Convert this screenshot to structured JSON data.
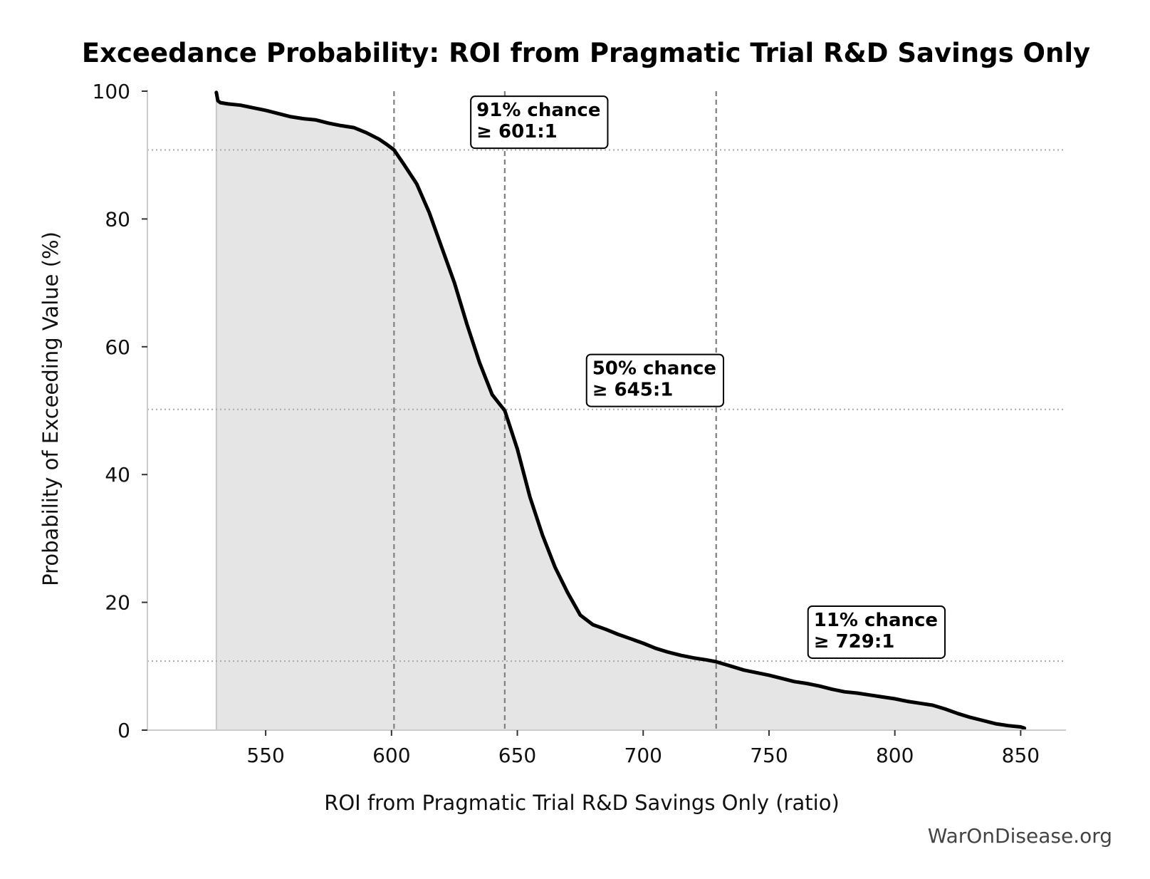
{
  "chart_data": {
    "type": "area",
    "title": "Exceedance Probability: ROI from Pragmatic Trial R&D Savings Only",
    "xlabel": "ROI from Pragmatic Trial R&D Savings Only (ratio)",
    "ylabel": "Probability of Exceeding Value (%)",
    "xlim": [
      503,
      868
    ],
    "ylim": [
      0,
      100
    ],
    "xticks": [
      550,
      600,
      650,
      700,
      750,
      800,
      850
    ],
    "yticks": [
      0,
      20,
      40,
      60,
      80,
      100
    ],
    "grid": false,
    "series": [
      {
        "x": [
          530.4,
          531,
          532,
          535,
          540,
          545,
          550,
          555,
          560,
          565,
          570,
          575,
          580,
          585,
          590,
          595,
          598,
          601,
          605,
          610,
          615,
          620,
          625,
          630,
          635,
          640,
          643,
          645,
          650,
          655,
          660,
          665,
          670,
          675,
          680,
          685,
          690,
          695,
          700,
          705,
          710,
          715,
          720,
          725,
          729,
          735,
          740,
          745,
          750,
          755,
          760,
          765,
          770,
          775,
          780,
          785,
          790,
          795,
          800,
          805,
          810,
          815,
          820,
          825,
          830,
          835,
          840,
          845,
          850,
          851.5
        ],
        "y": [
          99.8,
          98.5,
          98.2,
          98.0,
          97.8,
          97.4,
          97.0,
          96.5,
          96.0,
          95.7,
          95.5,
          95.0,
          94.6,
          94.3,
          93.5,
          92.5,
          91.7,
          90.8,
          88.5,
          85.5,
          81.0,
          75.5,
          70.0,
          63.5,
          57.5,
          52.5,
          51.0,
          50.0,
          44.0,
          36.5,
          30.5,
          25.5,
          21.5,
          18.0,
          16.5,
          15.8,
          15.0,
          14.3,
          13.6,
          12.8,
          12.2,
          11.7,
          11.3,
          11.0,
          10.7,
          10.0,
          9.4,
          9.0,
          8.6,
          8.1,
          7.6,
          7.3,
          6.9,
          6.4,
          6.0,
          5.8,
          5.5,
          5.2,
          4.9,
          4.5,
          4.2,
          3.9,
          3.3,
          2.6,
          2.0,
          1.5,
          1.0,
          0.7,
          0.5,
          0.3
        ]
      }
    ],
    "reference_lines": {
      "vertical": [
        601,
        645,
        729
      ],
      "horizontal": [
        90.8,
        50.2,
        10.8
      ]
    },
    "annotations": [
      {
        "line1": "91% chance",
        "line2": "≥ 601:1",
        "x": 631.5,
        "y": 99.2
      },
      {
        "line1": "50% chance",
        "line2": "≥ 645:1",
        "x": 677.5,
        "y": 58.8
      },
      {
        "line1": "11% chance",
        "line2": "≥ 729:1",
        "x": 765.5,
        "y": 19.4
      }
    ]
  },
  "watermark": "WarOnDisease.org",
  "colors": {
    "line": "#000000",
    "fill": "#e5e5e5",
    "reference": "#808080",
    "axis": "#cccccc"
  }
}
